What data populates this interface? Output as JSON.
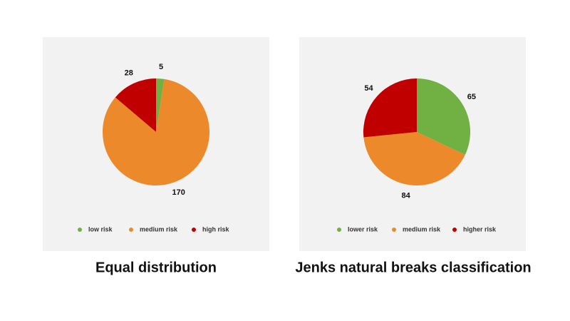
{
  "chart_data": [
    {
      "type": "pie",
      "title": "Equal distribution",
      "categories": [
        "low risk",
        "medium risk",
        "high risk"
      ],
      "values": [
        5,
        170,
        28
      ],
      "colors": [
        "#71b043",
        "#ec8a2b",
        "#c00000"
      ],
      "legend": "bottom"
    },
    {
      "type": "pie",
      "title": "Jenks natural breaks classification",
      "categories": [
        "lower risk",
        "medium risk",
        "higher risk"
      ],
      "values": [
        65,
        84,
        54
      ],
      "colors": [
        "#71b043",
        "#ec8a2b",
        "#c00000"
      ],
      "legend": "bottom"
    }
  ]
}
